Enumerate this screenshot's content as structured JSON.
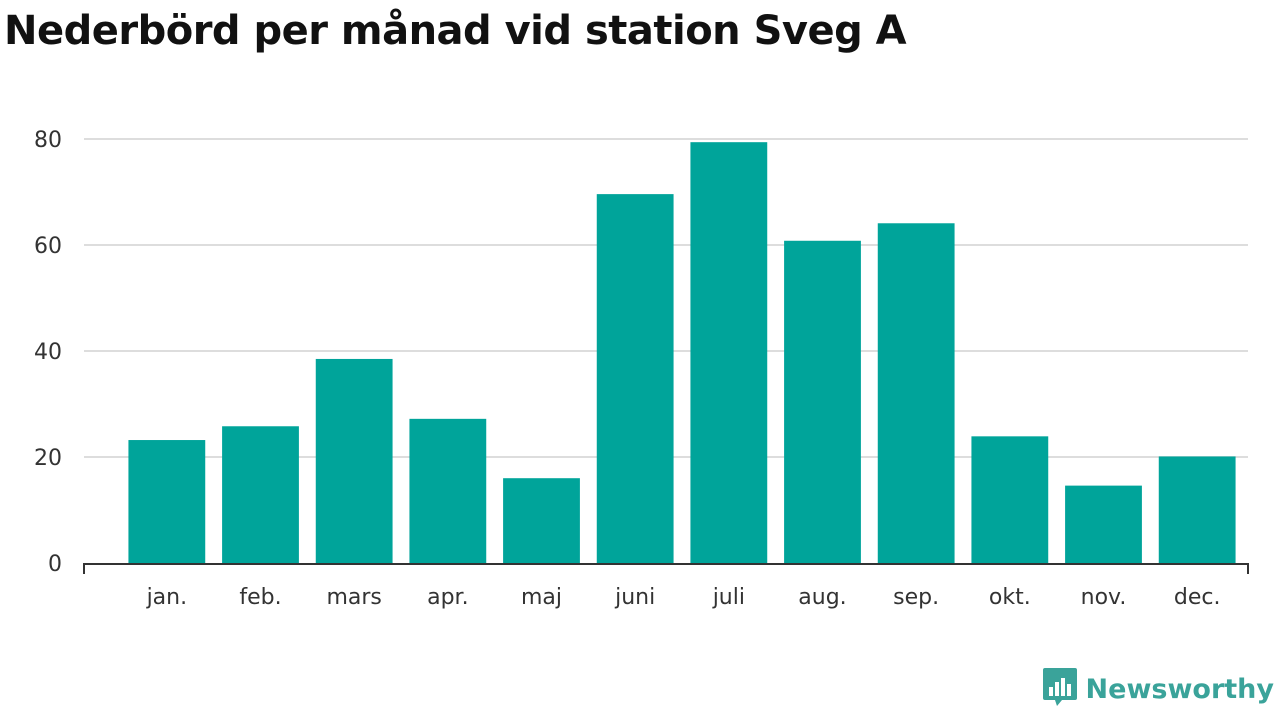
{
  "chart_data": {
    "type": "bar",
    "title": "Nederbörd per månad vid station Sveg A",
    "xlabel": "",
    "ylabel": "",
    "categories": [
      "jan.",
      "feb.",
      "mars",
      "apr.",
      "maj",
      "juni",
      "juli",
      "aug.",
      "sep.",
      "okt.",
      "nov.",
      "dec."
    ],
    "values": [
      23.2,
      25.8,
      38.5,
      27.2,
      16.0,
      69.6,
      79.4,
      60.8,
      64.1,
      23.9,
      14.6,
      20.1
    ],
    "ylim": [
      0,
      80
    ],
    "yticks": [
      0,
      20,
      40,
      60,
      80
    ],
    "grid": true,
    "bar_color": "#00a49a"
  },
  "brand": {
    "name": "Newsworthy",
    "logo_icon": "bar-chart-speech-bubble-icon",
    "color": "#3aa39a"
  }
}
